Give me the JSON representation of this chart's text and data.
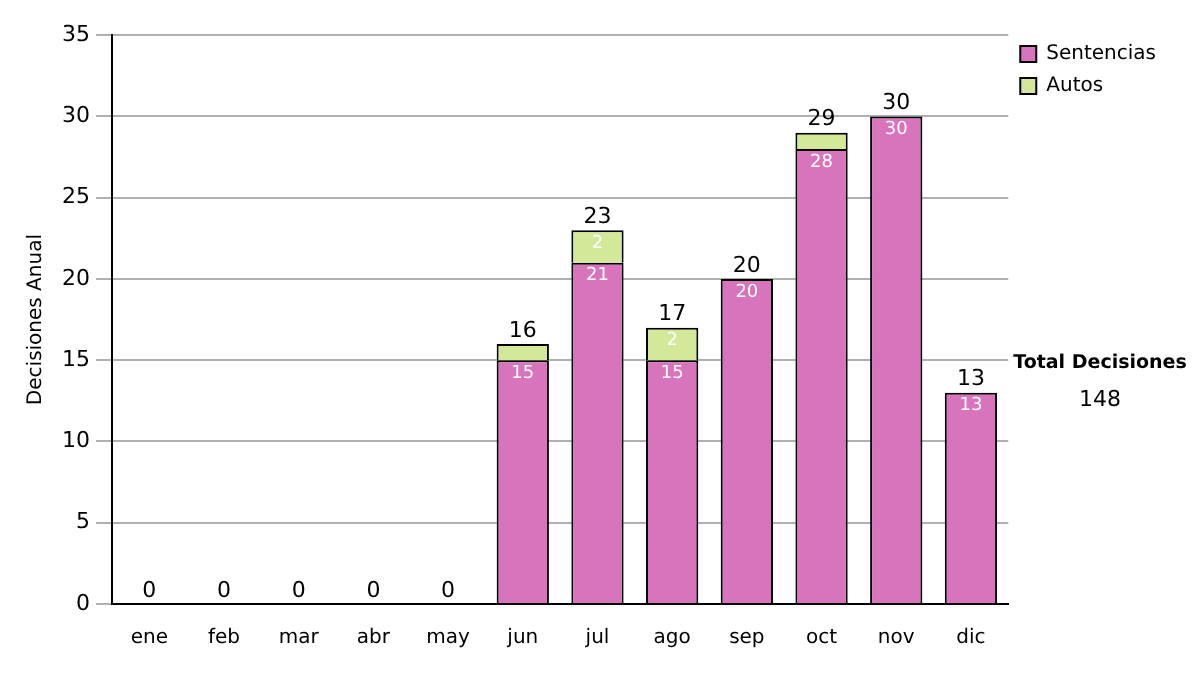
{
  "chart_data": {
    "type": "bar",
    "ylabel": "Decisiones Anual",
    "categories": [
      "ene",
      "feb",
      "mar",
      "abr",
      "may",
      "jun",
      "jul",
      "ago",
      "sep",
      "oct",
      "nov",
      "dic"
    ],
    "stacked": true,
    "series": [
      {
        "name": "Sentencias",
        "color": "#d874bc",
        "values": [
          0,
          0,
          0,
          0,
          0,
          15,
          21,
          15,
          20,
          28,
          30,
          13
        ],
        "value_labels": [
          null,
          null,
          null,
          null,
          null,
          "15",
          "21",
          "15",
          "20",
          "28",
          "30",
          "13"
        ]
      },
      {
        "name": "Autos",
        "color": "#d4e89a",
        "values": [
          0,
          0,
          0,
          0,
          0,
          1,
          2,
          2,
          0,
          1,
          0,
          0
        ],
        "value_labels": [
          null,
          null,
          null,
          null,
          null,
          null,
          "2",
          "2",
          null,
          null,
          null,
          null
        ]
      }
    ],
    "totals": [
      "0",
      "0",
      "0",
      "0",
      "0",
      "16",
      "23",
      "17",
      "20",
      "29",
      "30",
      "13"
    ],
    "ylim": [
      0,
      35
    ],
    "yticks": [
      0,
      5,
      10,
      15,
      20,
      25,
      30,
      35
    ],
    "grid": "y",
    "legend": "right",
    "annotations": [
      "Total Decisiones",
      "148"
    ]
  }
}
